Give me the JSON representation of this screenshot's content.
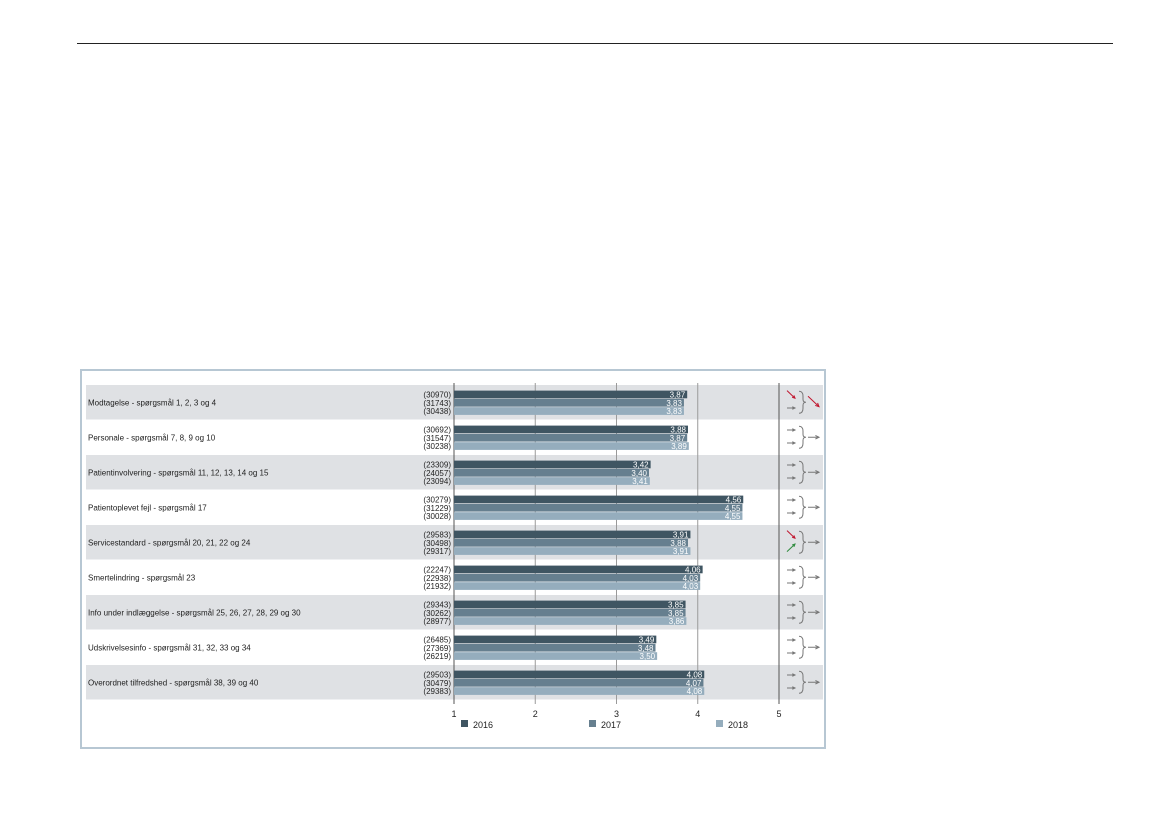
{
  "chart_data": {
    "type": "bar",
    "orientation": "horizontal",
    "xlim": [
      1,
      5
    ],
    "xticks": [
      "1",
      "2",
      "3",
      "4",
      "5"
    ],
    "legend_position": "bottom",
    "series": [
      {
        "name": "2016",
        "color": "#3f5562"
      },
      {
        "name": "2017",
        "color": "#667f8f"
      },
      {
        "name": "2018",
        "color": "#95adbd"
      }
    ],
    "categories": [
      {
        "label": "Modtagelse - spørgsmål 1, 2, 3 og 4",
        "counts": [
          "(30970)",
          "(31743)",
          "(30438)"
        ],
        "values": [
          3.87,
          3.83,
          3.83
        ],
        "labels": [
          "3,87",
          "3,83",
          "3,83"
        ],
        "trend": {
          "a": "down",
          "b": "flat",
          "overall": "down"
        }
      },
      {
        "label": "Personale - spørgsmål 7, 8, 9 og 10",
        "counts": [
          "(30692)",
          "(31547)",
          "(30238)"
        ],
        "values": [
          3.88,
          3.87,
          3.89
        ],
        "labels": [
          "3,88",
          "3,87",
          "3,89"
        ],
        "trend": {
          "a": "flat",
          "b": "flat",
          "overall": "flat"
        }
      },
      {
        "label": "Patientinvolvering - spørgsmål 11, 12, 13, 14 og 15",
        "counts": [
          "(23309)",
          "(24057)",
          "(23094)"
        ],
        "values": [
          3.42,
          3.4,
          3.41
        ],
        "labels": [
          "3,42",
          "3,40",
          "3,41"
        ],
        "trend": {
          "a": "flat",
          "b": "flat",
          "overall": "flat"
        }
      },
      {
        "label": "Patientoplevet fejl - spørgsmål 17",
        "counts": [
          "(30279)",
          "(31229)",
          "(30028)"
        ],
        "values": [
          4.56,
          4.55,
          4.55
        ],
        "labels": [
          "4,56",
          "4,55",
          "4,55"
        ],
        "trend": {
          "a": "flat",
          "b": "flat",
          "overall": "flat"
        }
      },
      {
        "label": "Servicestandard - spørgsmål 20, 21, 22 og 24",
        "counts": [
          "(29583)",
          "(30498)",
          "(29317)"
        ],
        "values": [
          3.91,
          3.88,
          3.91
        ],
        "labels": [
          "3,91",
          "3,88",
          "3,91"
        ],
        "trend": {
          "a": "down",
          "b": "up",
          "overall": "flat"
        }
      },
      {
        "label": "Smertelindring - spørgsmål 23",
        "counts": [
          "(22247)",
          "(22938)",
          "(21932)"
        ],
        "values": [
          4.06,
          4.03,
          4.03
        ],
        "labels": [
          "4,06",
          "4,03",
          "4,03"
        ],
        "trend": {
          "a": "flat",
          "b": "flat",
          "overall": "flat"
        }
      },
      {
        "label": "Info under indlæggelse - spørgsmål 25, 26, 27, 28, 29 og 30",
        "counts": [
          "(29343)",
          "(30262)",
          "(28977)"
        ],
        "values": [
          3.85,
          3.85,
          3.86
        ],
        "labels": [
          "3,85",
          "3,85",
          "3,86"
        ],
        "trend": {
          "a": "flat",
          "b": "flat",
          "overall": "flat"
        }
      },
      {
        "label": "Udskrivelsesinfo - spørgsmål 31, 32, 33 og 34",
        "counts": [
          "(26485)",
          "(27369)",
          "(26219)"
        ],
        "values": [
          3.49,
          3.48,
          3.5
        ],
        "labels": [
          "3,49",
          "3,48",
          "3,50"
        ],
        "trend": {
          "a": "flat",
          "b": "flat",
          "overall": "flat"
        }
      },
      {
        "label": "Overordnet tilfredshed - spørgsmål 38, 39 og 40",
        "counts": [
          "(29503)",
          "(30479)",
          "(29383)"
        ],
        "values": [
          4.08,
          4.07,
          4.08
        ],
        "labels": [
          "4,08",
          "4,07",
          "4,08"
        ],
        "trend": {
          "a": "flat",
          "b": "flat",
          "overall": "flat"
        }
      }
    ],
    "trend_colors": {
      "down": "#c0172f",
      "up": "#2e8b3d",
      "flat": "#777777"
    }
  }
}
